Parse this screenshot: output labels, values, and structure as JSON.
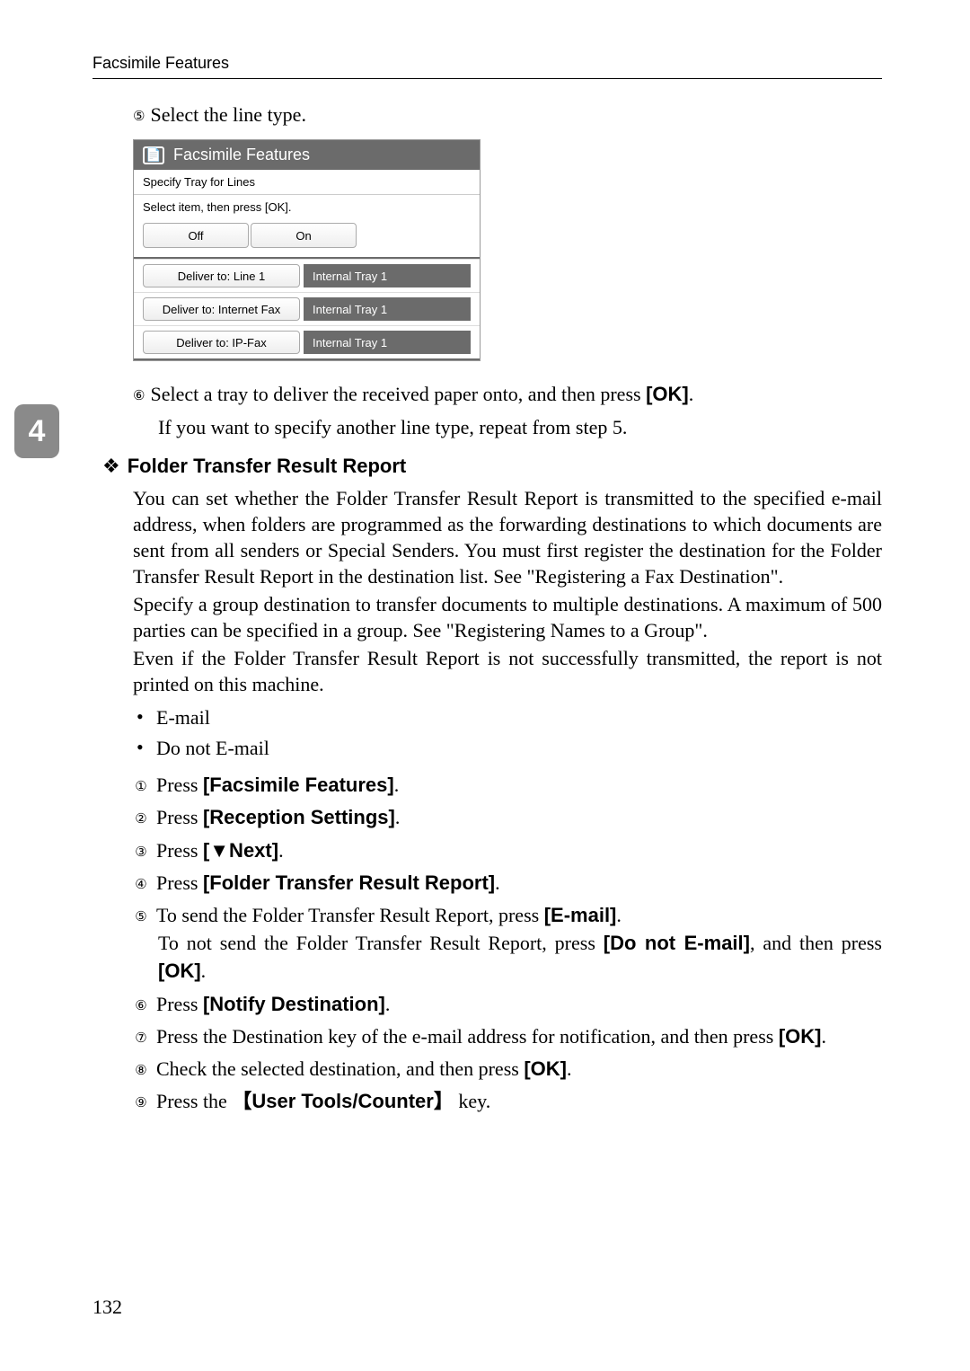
{
  "header": {
    "running": "Facsimile Features"
  },
  "sideTab": "4",
  "step5": {
    "num": "⑤",
    "text": "Select the line type."
  },
  "screenshot": {
    "title": "Facsimile Features",
    "sub": "Specify Tray for Lines",
    "instr": "Select item, then press [OK].",
    "off": "Off",
    "on": "On",
    "rows": [
      {
        "btn": "Deliver to: Line 1",
        "label": "Internal Tray 1"
      },
      {
        "btn": "Deliver to: Internet Fax",
        "label": "Internal Tray 1"
      },
      {
        "btn": "Deliver to: IP-Fax",
        "label": "Internal Tray 1"
      }
    ]
  },
  "step6": {
    "num": "⑥",
    "line1a": "Select a tray to deliver the received paper onto, and then press ",
    "ok": "[OK]",
    "line1b": ".",
    "line2": "If you want to specify another line type, repeat from step 5."
  },
  "section": {
    "diamond": "❖",
    "title": "Folder Transfer Result Report",
    "p1": "You can set whether the Folder Transfer Result Report is transmitted to the specified e-mail address, when folders are programmed as the forwarding destinations to which documents are sent from all senders or Special Senders. You must first register the destination for the Folder Transfer Result Report in the destination list. See \"Registering a Fax Destination\".",
    "p2": "Specify a group destination to transfer documents to multiple destinations. A maximum of 500 parties can be specified in a group. See \"Registering Names to a Group\".",
    "p3": "Even if the Folder Transfer Result Report is not successfully transmitted, the report is not printed on this machine."
  },
  "bullets": {
    "b1": "E-mail",
    "b2": "Do not E-mail"
  },
  "steps": {
    "s1": {
      "n": "①",
      "a": "Press ",
      "b": "[Facsimile Features]",
      "c": "."
    },
    "s2": {
      "n": "②",
      "a": "Press ",
      "b": "[Reception Settings]",
      "c": "."
    },
    "s3": {
      "n": "③",
      "a": "Press ",
      "b": "[▼Next]",
      "c": "."
    },
    "s4": {
      "n": "④",
      "a": "Press ",
      "b": "[Folder Transfer Result Report]",
      "c": "."
    },
    "s5": {
      "n": "⑤",
      "a": "To send the Folder Transfer Result Report, press ",
      "b": "[E-mail]",
      "c": ".",
      "l2a": "To not send the Folder Transfer Result Report, press ",
      "l2b": "[Do not E-mail]",
      "l2c": ", and then press ",
      "l2d": "[OK]",
      "l2e": "."
    },
    "s6": {
      "n": "⑥",
      "a": "Press ",
      "b": "[Notify Destination]",
      "c": "."
    },
    "s7": {
      "n": "⑦",
      "a": "Press the Destination key of the e-mail address for notification, and then press ",
      "b": "[OK]",
      "c": "."
    },
    "s8": {
      "n": "⑧",
      "a": "Check the selected destination, and then press ",
      "b": "[OK]",
      "c": "."
    },
    "s9": {
      "n": "⑨",
      "a": "Press the ",
      "lb": "【",
      "b": "User Tools/Counter",
      "rb": "】",
      "c": " key."
    }
  },
  "pageNum": "132"
}
